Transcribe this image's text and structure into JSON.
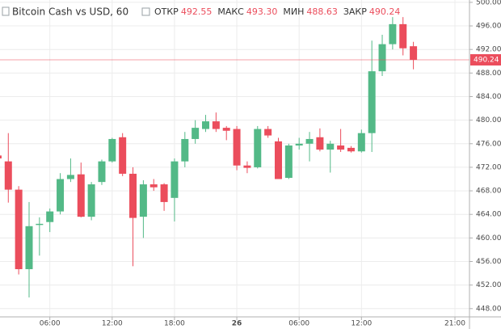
{
  "chart_data": {
    "type": "candlestick",
    "title": "Bitcoin Cash vs USD, 60",
    "header_stats": [
      {
        "label": "ОТКР",
        "value": "492.55"
      },
      {
        "label": "МАКС",
        "value": "493.30"
      },
      {
        "label": "МИН",
        "value": "488.63"
      },
      {
        "label": "ЗАКР",
        "value": "490.24"
      }
    ],
    "up_color": "#53b987",
    "down_color": "#eb4d5c",
    "grid": true,
    "x": [
      1,
      2,
      3,
      4,
      5,
      6,
      7,
      8,
      9,
      10,
      11,
      12,
      13,
      14,
      15,
      16,
      17,
      18,
      19,
      20,
      21,
      22,
      23,
      24,
      25,
      26,
      27,
      28,
      29,
      30,
      31,
      32,
      33,
      34,
      35,
      36,
      37,
      38,
      39,
      40,
      41
    ],
    "open": [
      474.0,
      473.0,
      468.2,
      454.7,
      462.2,
      462.7,
      464.5,
      470.0,
      470.8,
      463.6,
      469.5,
      473.0,
      477.1,
      470.9,
      463.6,
      469.1,
      469.1,
      466.8,
      473.0,
      476.8,
      478.5,
      479.8,
      478.7,
      478.5,
      472.3,
      472.0,
      478.5,
      476.4,
      470.2,
      475.7,
      476.0,
      477.1,
      475.0,
      475.7,
      475.3,
      474.7,
      477.8,
      488.3,
      492.9,
      496.3,
      492.55
    ],
    "high": [
      474.6,
      477.8,
      468.8,
      466.1,
      463.5,
      465.0,
      471.0,
      473.5,
      472.8,
      469.5,
      473.3,
      477.0,
      477.8,
      472.0,
      469.8,
      470.0,
      469.3,
      473.5,
      478.0,
      480.0,
      480.9,
      481.3,
      479.0,
      479.0,
      473.0,
      479.0,
      479.0,
      477.0,
      476.0,
      477.0,
      478.0,
      478.6,
      476.5,
      478.5,
      475.6,
      478.4,
      493.5,
      494.5,
      497.5,
      497.5,
      493.3
    ],
    "low": [
      472.8,
      466.0,
      453.8,
      449.9,
      457.0,
      461.0,
      464.0,
      469.5,
      463.5,
      463.0,
      469.0,
      472.8,
      470.5,
      455.2,
      460.0,
      468.0,
      464.6,
      462.8,
      472.0,
      476.0,
      478.0,
      478.0,
      476.6,
      471.5,
      471.0,
      471.8,
      477.0,
      470.0,
      470.0,
      475.0,
      473.0,
      474.7,
      471.1,
      474.6,
      474.5,
      474.5,
      474.6,
      487.5,
      492.0,
      491.0,
      488.63
    ],
    "close": [
      473.5,
      468.2,
      454.7,
      462.0,
      462.4,
      464.5,
      470.0,
      470.7,
      463.6,
      469.1,
      473.0,
      476.8,
      470.9,
      463.4,
      469.1,
      468.6,
      466.1,
      473.0,
      476.8,
      478.7,
      479.8,
      478.5,
      478.2,
      472.3,
      471.9,
      478.5,
      477.4,
      470.0,
      475.7,
      476.0,
      476.8,
      475.0,
      476.0,
      475.0,
      474.7,
      477.8,
      488.3,
      492.9,
      496.3,
      492.2,
      490.24
    ],
    "xlim": [
      1.2,
      46.4
    ],
    "xticks": [
      {
        "value": 6,
        "label": "06:00"
      },
      {
        "value": 12,
        "label": "12:00"
      },
      {
        "value": 18,
        "label": "18:00"
      },
      {
        "value": 24,
        "label": "26"
      },
      {
        "value": 30,
        "label": "06:00"
      },
      {
        "value": 36,
        "label": "12:00"
      },
      {
        "value": 45,
        "label": "21:00"
      }
    ],
    "ylim": [
      446.6,
      500.4
    ],
    "yticks": [
      {
        "value": 448,
        "label": "448.00"
      },
      {
        "value": 452,
        "label": "452.00"
      },
      {
        "value": 456,
        "label": "456.00"
      },
      {
        "value": 460,
        "label": "460.00"
      },
      {
        "value": 464,
        "label": "464.00"
      },
      {
        "value": 468,
        "label": "468.00"
      },
      {
        "value": 472,
        "label": "472.00"
      },
      {
        "value": 476,
        "label": "476.00"
      },
      {
        "value": 480,
        "label": "480.00"
      },
      {
        "value": 484,
        "label": "484.00"
      },
      {
        "value": 488,
        "label": "488.00"
      },
      {
        "value": 492,
        "label": "492.00"
      },
      {
        "value": 496,
        "label": "496.00"
      },
      {
        "value": 500,
        "label": "500.00"
      }
    ],
    "last_price": {
      "value": 490.24,
      "label": "490.24"
    }
  }
}
